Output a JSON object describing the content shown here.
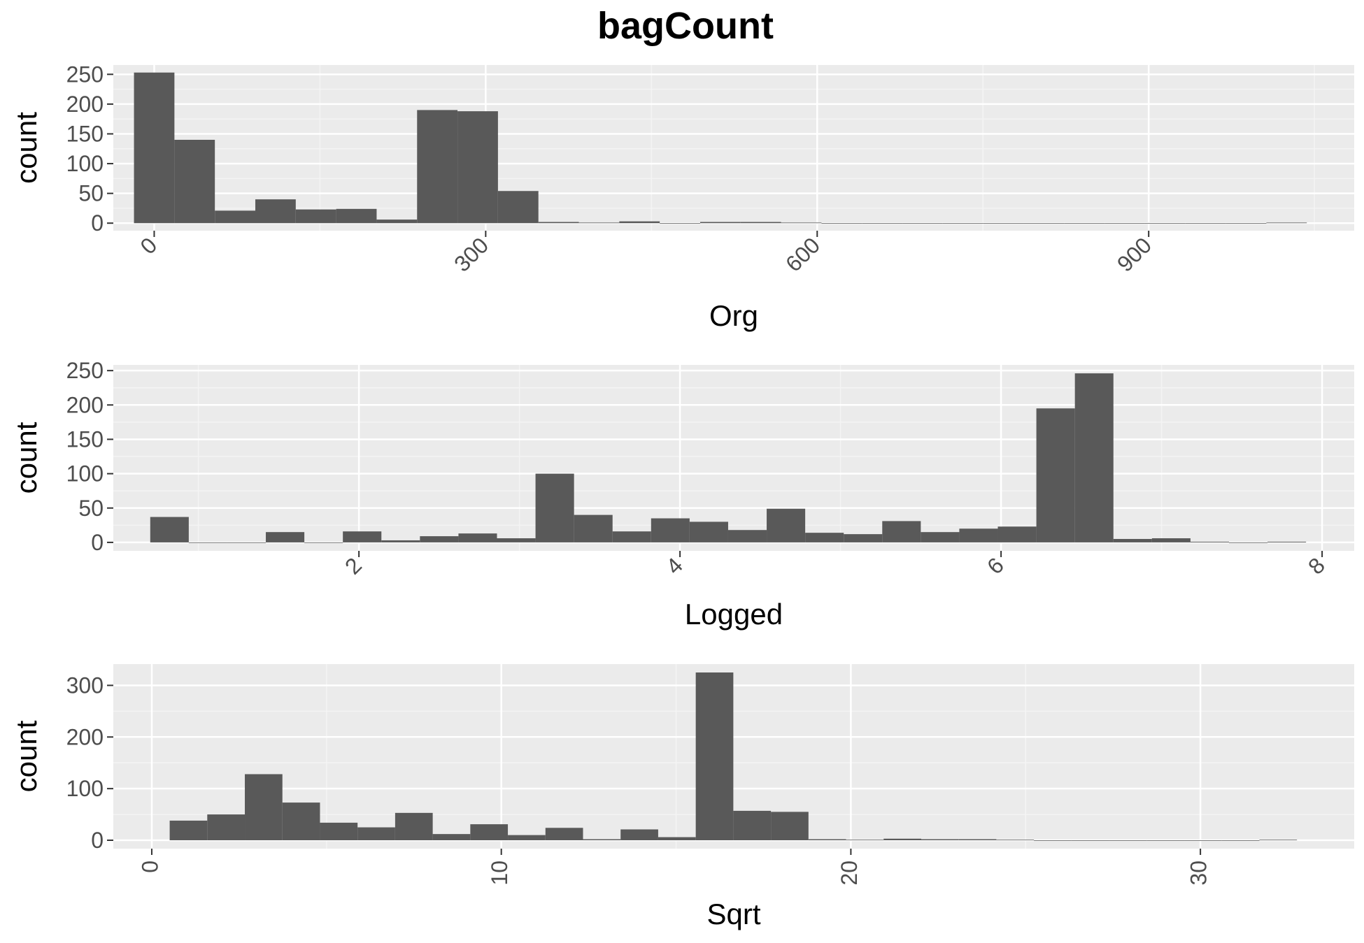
{
  "title": "bagCount",
  "colors": {
    "panel_bg": "#ebebeb",
    "grid_major": "#ffffff",
    "grid_minor": "#f4f4f4",
    "bar": "#595959",
    "tick": "#333333",
    "tick_label": "#4d4d4d"
  },
  "chart_data": [
    {
      "type": "bar",
      "histogram": true,
      "xlabel": "Org",
      "ylabel": "count",
      "xlim": [
        -37,
        1086
      ],
      "ylim": [
        -12.65,
        265.65
      ],
      "xticks": [
        "0",
        "300",
        "600",
        "900"
      ],
      "xtick_values": [
        0,
        300,
        600,
        900
      ],
      "yticks": [
        "0",
        "50",
        "100",
        "150",
        "200",
        "250"
      ],
      "ytick_values": [
        0,
        50,
        100,
        150,
        200,
        250
      ],
      "bin_width": 36.6,
      "x": [
        0,
        36.6,
        73.2,
        109.8,
        146.4,
        183,
        219.6,
        256.2,
        292.8,
        329.4,
        366,
        402.6,
        439.2,
        475.8,
        512.4,
        549,
        585.6,
        622.2,
        658.8,
        695.4,
        732,
        768.6,
        805.2,
        841.8,
        878.4,
        915,
        951.6,
        988.2,
        1024.8
      ],
      "values": [
        253,
        140,
        21,
        40,
        23,
        24,
        6,
        190,
        188,
        54,
        2,
        1,
        3,
        0,
        2,
        2,
        1,
        0,
        0,
        0,
        0,
        0,
        0,
        0,
        0,
        0,
        0,
        0,
        1
      ]
    },
    {
      "type": "bar",
      "histogram": true,
      "xlabel": "Logged",
      "ylabel": "count",
      "xlim": [
        0.47,
        8.2
      ],
      "ylim": [
        -12.3,
        258.3
      ],
      "xticks": [
        "2",
        "4",
        "6",
        "8"
      ],
      "xtick_values": [
        2,
        4,
        6,
        8
      ],
      "yticks": [
        "0",
        "50",
        "100",
        "150",
        "200",
        "250"
      ],
      "ytick_values": [
        0,
        50,
        100,
        150,
        200,
        250
      ],
      "bin_width": 0.24,
      "x": [
        0.82,
        1.06,
        1.3,
        1.54,
        1.78,
        2.02,
        2.26,
        2.5,
        2.74,
        2.98,
        3.22,
        3.46,
        3.7,
        3.94,
        4.18,
        4.42,
        4.66,
        4.9,
        5.14,
        5.38,
        5.62,
        5.86,
        6.1,
        6.34,
        6.58,
        6.82,
        7.06,
        7.3,
        7.54,
        7.78
      ],
      "values": [
        37,
        0,
        0,
        15,
        0,
        16,
        3,
        9,
        13,
        6,
        100,
        40,
        16,
        35,
        30,
        18,
        49,
        14,
        12,
        31,
        15,
        20,
        23,
        195,
        246,
        5,
        6,
        1,
        0,
        1
      ]
    },
    {
      "type": "bar",
      "histogram": true,
      "xlabel": "Sqrt",
      "ylabel": "count",
      "xlim": [
        -1.1,
        34.4
      ],
      "ylim": [
        -16.25,
        341.25
      ],
      "xticks": [
        "0",
        "10",
        "20",
        "30"
      ],
      "xtick_values": [
        0,
        10,
        20,
        30
      ],
      "yticks": [
        "0",
        "100",
        "200",
        "300"
      ],
      "ytick_values": [
        0,
        100,
        200,
        300
      ],
      "bin_width": 1.075,
      "x": [
        1.05,
        2.125,
        3.2,
        4.275,
        5.35,
        6.425,
        7.5,
        8.575,
        9.65,
        10.725,
        11.8,
        12.875,
        13.95,
        15.025,
        16.1,
        17.175,
        18.25,
        19.325,
        20.4,
        21.475,
        22.55,
        23.625,
        24.7,
        25.775,
        26.85,
        27.925,
        29,
        30.075,
        31.15,
        32.225
      ],
      "values": [
        38,
        50,
        128,
        73,
        34,
        25,
        53,
        12,
        31,
        10,
        24,
        2,
        21,
        6,
        325,
        57,
        55,
        2,
        1,
        3,
        2,
        2,
        1,
        0,
        0,
        0,
        0,
        0,
        0,
        1
      ]
    }
  ]
}
